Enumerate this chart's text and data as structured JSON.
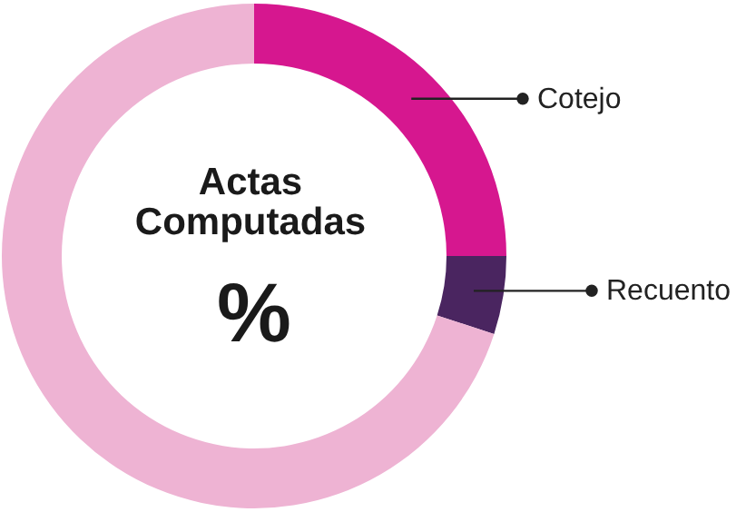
{
  "chart_data": {
    "type": "donut",
    "categories": [
      "Cotejo",
      "Recuento",
      null
    ],
    "values": [
      25,
      5,
      70
    ],
    "colors": [
      "#d6178f",
      "#4a2560",
      "#eeb3d3"
    ],
    "annotations": [
      "Actas Computadas",
      "%"
    ]
  }
}
